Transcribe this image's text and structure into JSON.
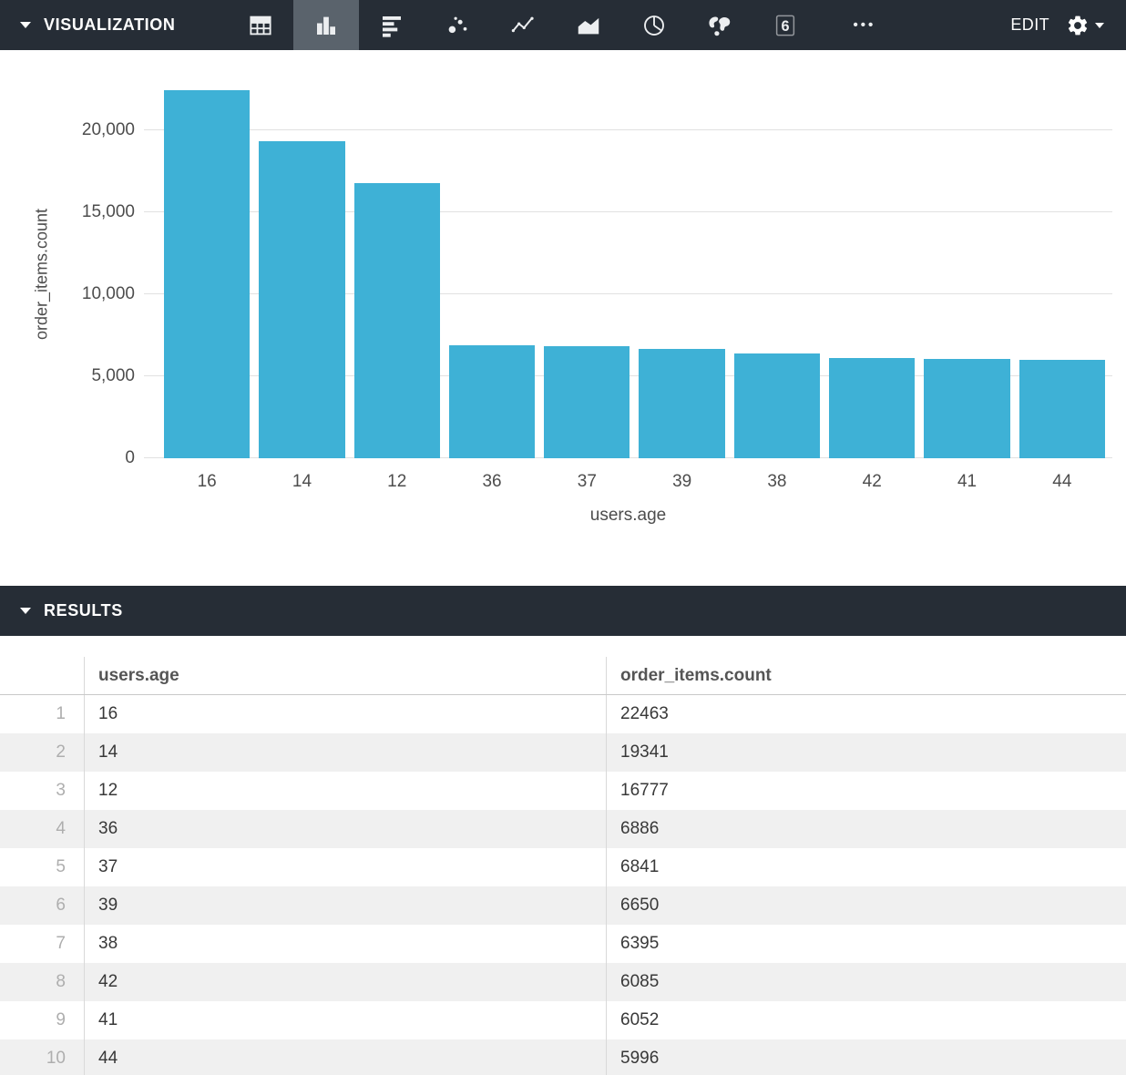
{
  "visualization_panel": {
    "title": "VISUALIZATION",
    "toolbar": {
      "icons": [
        {
          "name": "table-icon",
          "type": "table",
          "selected": false
        },
        {
          "name": "column-chart-icon",
          "type": "column",
          "selected": true
        },
        {
          "name": "bar-chart-icon",
          "type": "bar",
          "selected": false
        },
        {
          "name": "scatter-chart-icon",
          "type": "scatter",
          "selected": false
        },
        {
          "name": "line-chart-icon",
          "type": "line",
          "selected": false
        },
        {
          "name": "area-chart-icon",
          "type": "area",
          "selected": false
        },
        {
          "name": "pie-chart-icon",
          "type": "pie",
          "selected": false
        },
        {
          "name": "map-chart-icon",
          "type": "map",
          "selected": false
        },
        {
          "name": "single-value-icon",
          "type": "single",
          "selected": false,
          "glyph": "6"
        }
      ],
      "more_label": "•••",
      "edit_label": "EDIT"
    }
  },
  "chart_data": {
    "type": "bar",
    "categories": [
      "16",
      "14",
      "12",
      "36",
      "37",
      "39",
      "38",
      "42",
      "41",
      "44"
    ],
    "values": [
      22463,
      19341,
      16777,
      6886,
      6841,
      6650,
      6395,
      6085,
      6052,
      5996
    ],
    "title": "",
    "xlabel": "users.age",
    "ylabel": "order_items.count",
    "ylim": [
      0,
      22500
    ],
    "yticks": [
      0,
      5000,
      10000,
      15000,
      20000
    ],
    "ytick_labels": [
      "0",
      "5,000",
      "10,000",
      "15,000",
      "20,000"
    ],
    "bar_color": "#3EB1D6",
    "grid": true,
    "legend": "none"
  },
  "results_panel": {
    "title": "RESULTS",
    "table": {
      "columns": [
        "users.age",
        "order_items.count"
      ],
      "rows": [
        {
          "index": "1",
          "age": "16",
          "count": "22463"
        },
        {
          "index": "2",
          "age": "14",
          "count": "19341"
        },
        {
          "index": "3",
          "age": "12",
          "count": "16777"
        },
        {
          "index": "4",
          "age": "36",
          "count": "6886"
        },
        {
          "index": "5",
          "age": "37",
          "count": "6841"
        },
        {
          "index": "6",
          "age": "39",
          "count": "6650"
        },
        {
          "index": "7",
          "age": "38",
          "count": "6395"
        },
        {
          "index": "8",
          "age": "42",
          "count": "6085"
        },
        {
          "index": "9",
          "age": "41",
          "count": "6052"
        },
        {
          "index": "10",
          "age": "44",
          "count": "5996"
        }
      ]
    }
  }
}
